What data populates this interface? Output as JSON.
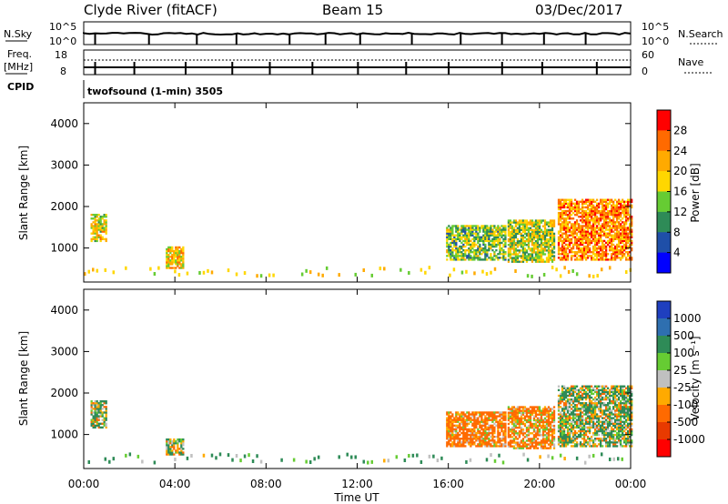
{
  "header": {
    "station": "Clyde River (fitACF)",
    "beam": "Beam 15",
    "date": "03/Dec/2017"
  },
  "params_panel": {
    "nsky_label": "N.Sky",
    "nsearch_label": "N.Search",
    "freq_label": "Freq.",
    "freq_unit": "[MHz]",
    "nave_label": "Nave",
    "cpid_label": "CPID",
    "nsky_ticks": [
      "10^5",
      "10^0"
    ],
    "nsearch_ticks": [
      "10^5",
      "10^0"
    ],
    "freq_ticks": [
      "18",
      "8"
    ],
    "nave_ticks": [
      "60",
      "0"
    ],
    "cpid_value": "twofsound (1-min) 3505"
  },
  "power_colorbar": {
    "label": "Power [dB]",
    "ticks": [
      "28",
      "24",
      "20",
      "16",
      "12",
      "8",
      "4"
    ],
    "colors": [
      "#ff0000",
      "#ff6a00",
      "#ffaa00",
      "#ffd700",
      "#66cc33",
      "#2e8b57",
      "#1f4fa8",
      "#0000ff"
    ]
  },
  "velocity_colorbar": {
    "label": "Velocity [m s⁻¹]",
    "ticks": [
      "1000",
      "500",
      "100",
      "25",
      "-25",
      "-100",
      "-500",
      "-1000"
    ],
    "colors": [
      "#1f3fbf",
      "#2e6fb0",
      "#2e8b57",
      "#66cc33",
      "#c0c0c0",
      "#ffaa00",
      "#ff6a00",
      "#e83a00",
      "#ff0000"
    ]
  },
  "time_axis": {
    "label": "Time UT",
    "ticks": [
      "00:00",
      "04:00",
      "08:00",
      "12:00",
      "16:00",
      "20:00",
      "00:00"
    ]
  },
  "chart_data": [
    {
      "type": "heatmap",
      "title": "Power",
      "ylabel": "Slant Range [km]",
      "xlabel": "",
      "xlim": [
        "00:00",
        "24:00"
      ],
      "ylim": [
        180,
        4500
      ],
      "yticks": [
        1000,
        2000,
        3000,
        4000
      ],
      "regions": [
        {
          "t0": 0.3,
          "t1": 1.0,
          "r0": 1150,
          "r1": 1800,
          "value": 18
        },
        {
          "t0": 3.6,
          "t1": 4.4,
          "r0": 500,
          "r1": 1000,
          "value": 20
        },
        {
          "t0": 15.9,
          "t1": 18.5,
          "r0": 700,
          "r1": 1550,
          "value": 14
        },
        {
          "t0": 18.6,
          "t1": 20.6,
          "r0": 650,
          "r1": 1650,
          "value": 16
        },
        {
          "t0": 20.8,
          "t1": 24.0,
          "r0": 700,
          "r1": 2150,
          "value": 24
        }
      ]
    },
    {
      "type": "heatmap",
      "title": "Velocity",
      "ylabel": "Slant Range [km]",
      "xlabel": "Time UT",
      "xlim": [
        "00:00",
        "24:00"
      ],
      "ylim": [
        180,
        4500
      ],
      "yticks": [
        1000,
        2000,
        3000,
        4000
      ],
      "regions": [
        {
          "t0": 0.3,
          "t1": 1.0,
          "r0": 1150,
          "r1": 1800,
          "value": 100
        },
        {
          "t0": 3.6,
          "t1": 4.4,
          "r0": 500,
          "r1": 900,
          "value": 50
        },
        {
          "t0": 15.9,
          "t1": 18.5,
          "r0": 700,
          "r1": 1550,
          "value": -200
        },
        {
          "t0": 18.6,
          "t1": 20.6,
          "r0": 650,
          "r1": 1650,
          "value": -150
        },
        {
          "t0": 20.8,
          "t1": 24.0,
          "r0": 700,
          "r1": 2150,
          "value": 80
        }
      ]
    }
  ]
}
